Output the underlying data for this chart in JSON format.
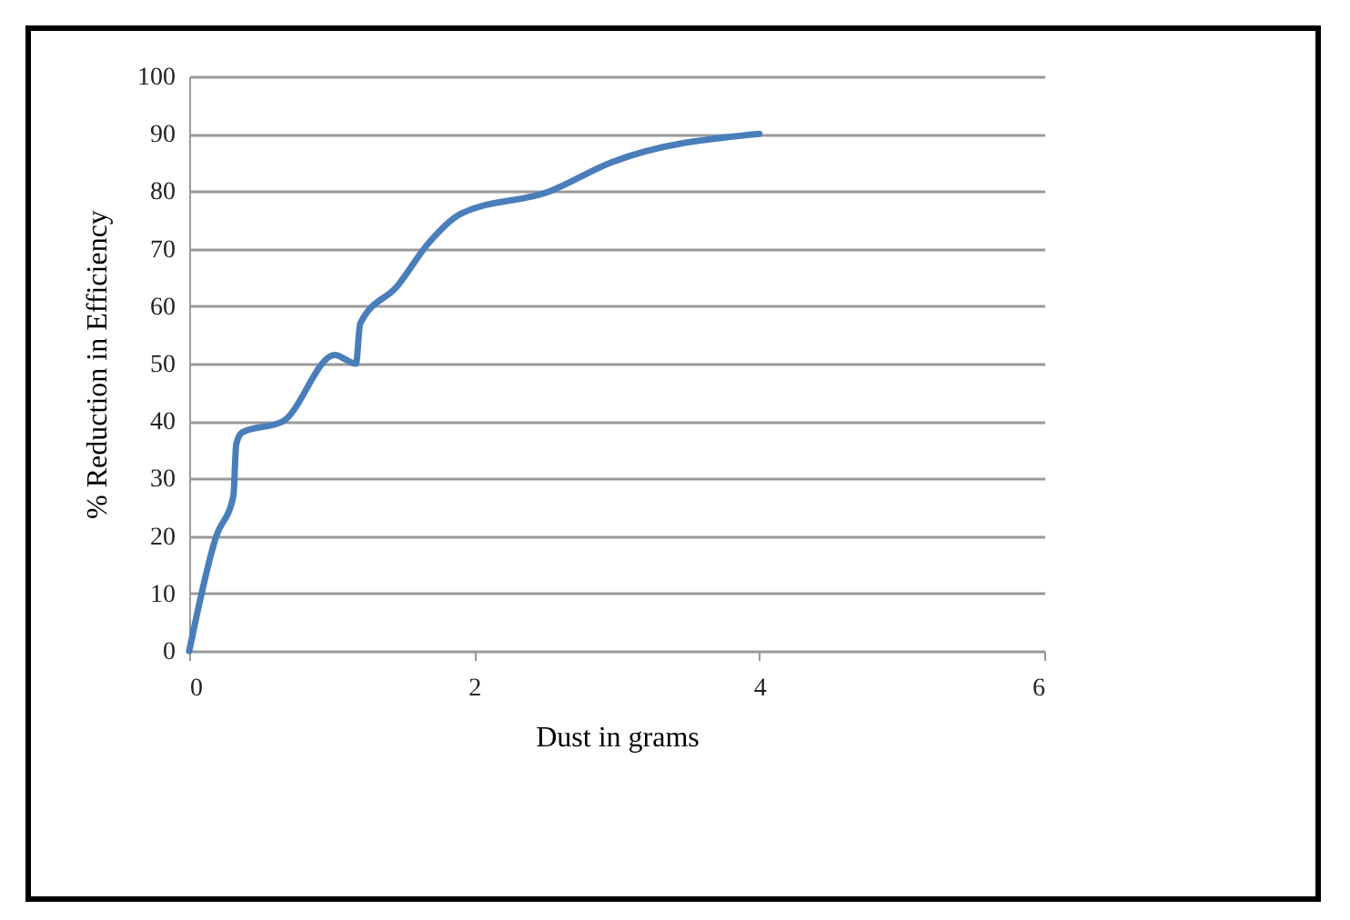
{
  "chart_data": {
    "type": "line",
    "xlabel": "Dust in grams",
    "ylabel": "% Reduction in Efficiency",
    "series": [
      {
        "color": "#4a7ebb",
        "x": [
          0,
          0.19,
          0.31,
          0.33,
          0.37,
          0.66,
          1.02,
          1.17,
          1.2,
          1.46,
          1.68,
          1.9,
          2.53,
          2.96,
          4.0
        ],
        "values": [
          0,
          20,
          27,
          36,
          38,
          40,
          51.5,
          50,
          57,
          63.5,
          71,
          76,
          80,
          85,
          90
        ]
      }
    ],
    "xlim": [
      0,
      6
    ],
    "xticks": [
      0,
      2,
      4,
      6
    ],
    "ylim": [
      0,
      100
    ],
    "yticks": [
      0,
      10,
      20,
      30,
      40,
      50,
      60,
      70,
      80,
      90,
      100
    ],
    "grid": "y",
    "legend": false,
    "marker": "none",
    "line_style": "solid"
  }
}
